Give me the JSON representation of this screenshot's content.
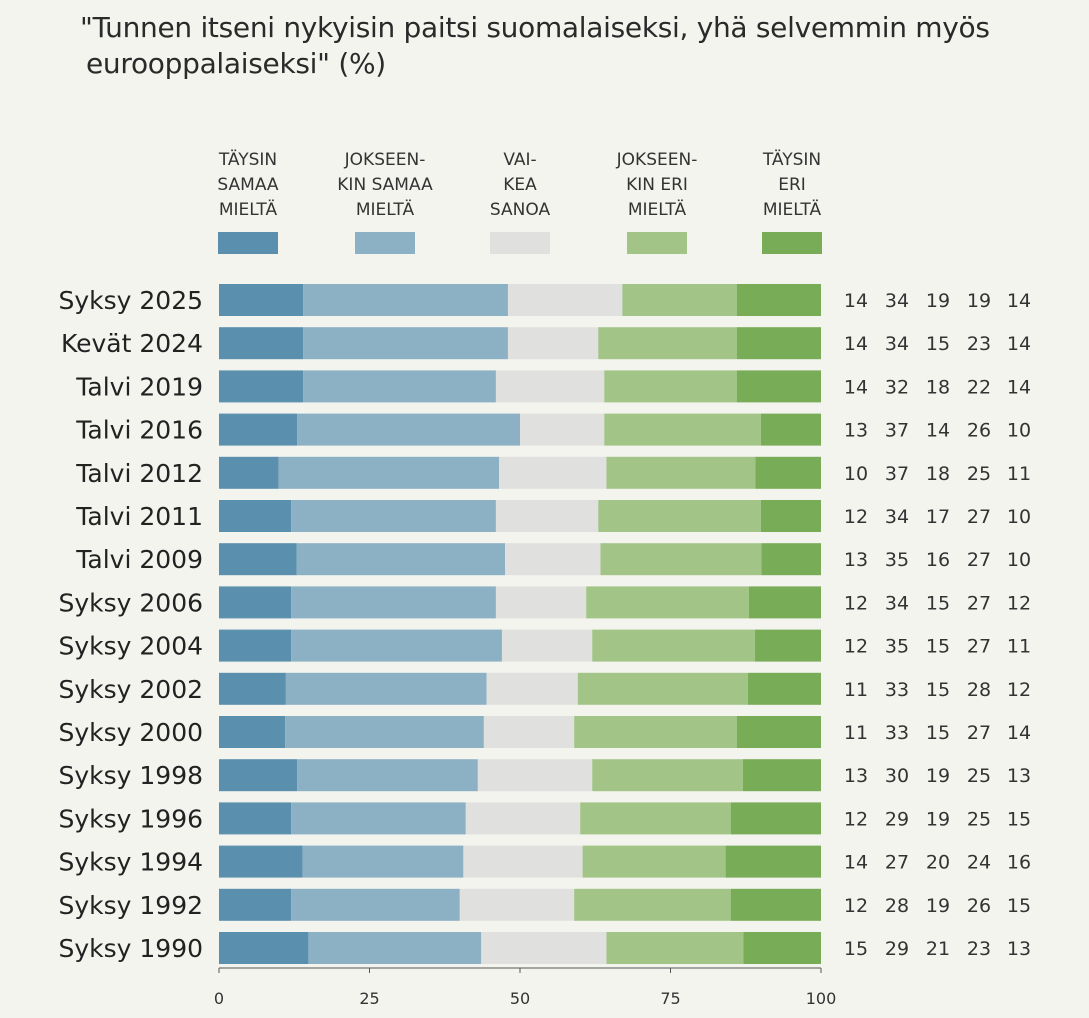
{
  "chart_data": {
    "type": "bar",
    "orientation": "horizontal",
    "stacked": true,
    "title": "\"Tunnen itseni nykyisin paitsi suomalaiseksi, yhä selvemmin myös eurooppalaiseksi\" (%)",
    "title_lines": [
      "\"Tunnen itseni nykyisin paitsi suomalaiseksi, yhä selvemmin myös",
      "eurooppalaiseksi\" (%)"
    ],
    "categories": [
      "Syksy 2025",
      "Kevät 2024",
      "Talvi 2019",
      "Talvi 2016",
      "Talvi 2012",
      "Talvi 2011",
      "Talvi 2009",
      "Syksy 2006",
      "Syksy 2004",
      "Syksy 2002",
      "Syksy 2000",
      "Syksy 1998",
      "Syksy 1996",
      "Syksy 1994",
      "Syksy 1992",
      "Syksy 1990"
    ],
    "series": [
      {
        "name": "TÄYSIN SAMAA MIELTÄ",
        "label_lines": [
          "TÄYSIN",
          "SAMAA",
          "MIELTÄ"
        ],
        "color": "#5a8fae",
        "values": [
          14,
          14,
          14,
          13,
          10,
          12,
          13,
          12,
          12,
          11,
          11,
          13,
          12,
          14,
          12,
          15
        ]
      },
      {
        "name": "JOKSEEN-KIN SAMAA MIELTÄ",
        "label_lines": [
          "JOKSEEN-",
          "KIN SAMAA",
          "MIELTÄ"
        ],
        "color": "#8db1c4",
        "values": [
          34,
          34,
          32,
          37,
          37,
          34,
          35,
          34,
          35,
          33,
          33,
          30,
          29,
          27,
          28,
          29
        ]
      },
      {
        "name": "VAI-KEA SANOA",
        "label_lines": [
          "VAI-",
          "KEA",
          "SANOA"
        ],
        "color": "#e0e0de",
        "values": [
          19,
          15,
          18,
          14,
          18,
          17,
          16,
          15,
          15,
          15,
          15,
          19,
          19,
          20,
          19,
          21
        ]
      },
      {
        "name": "JOKSEEN-KIN ERI MIELTÄ",
        "label_lines": [
          "JOKSEEN-",
          "KIN ERI",
          "MIELTÄ"
        ],
        "color": "#a2c587",
        "values": [
          19,
          23,
          22,
          26,
          25,
          27,
          27,
          27,
          27,
          28,
          27,
          25,
          25,
          24,
          26,
          23
        ]
      },
      {
        "name": "TÄYSIN ERI MIELTÄ",
        "label_lines": [
          "TÄYSIN",
          "ERI",
          "MIELTÄ"
        ],
        "color": "#78ac56",
        "values": [
          14,
          14,
          14,
          10,
          11,
          10,
          10,
          12,
          11,
          12,
          14,
          13,
          15,
          16,
          15,
          13
        ]
      }
    ],
    "xlim": [
      0,
      100
    ],
    "xticks": [
      0,
      25,
      50,
      75,
      100
    ],
    "xlabel": "",
    "ylabel": "",
    "legend_position": "top",
    "data_labels": "right-of-bars"
  }
}
